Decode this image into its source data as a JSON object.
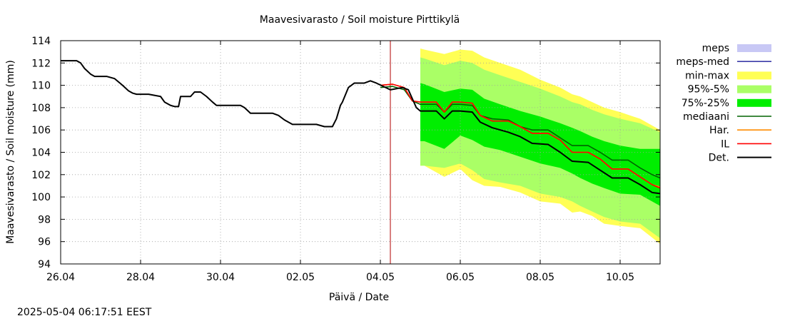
{
  "chart_data": {
    "type": "line",
    "title": "Maavesivarasto / Soil moisture   Pirttikylä",
    "xlabel": "Päivä / Date",
    "ylabel": "Maavesivarasto / Soil moisture (mm)",
    "ylim": [
      94,
      114
    ],
    "xlim_days": [
      0,
      15
    ],
    "yticks": [
      94,
      96,
      98,
      100,
      102,
      104,
      106,
      108,
      110,
      112,
      114
    ],
    "xtick_labels": [
      "26.04",
      "28.04",
      "30.04",
      "02.05",
      "04.05",
      "06.05",
      "08.05",
      "10.05"
    ],
    "xtick_days": [
      0,
      2,
      4,
      6,
      8,
      10,
      12,
      14
    ],
    "grid": true,
    "legend_position": "right",
    "forecast_start_day": 8.25,
    "forecast_band_start_day": 9.0,
    "series": [
      {
        "name": "meps",
        "kind": "band",
        "color": "#c8c8f5",
        "x": [],
        "low": [],
        "high": []
      },
      {
        "name": "meps-med",
        "kind": "line",
        "color": "#3a3aa8",
        "x": [],
        "y": []
      },
      {
        "name": "min-max",
        "kind": "band",
        "color": "#ffff55",
        "x": [
          9.0,
          9.1,
          9.6,
          10.0,
          10.3,
          10.6,
          11.0,
          11.5,
          12.0,
          12.5,
          12.8,
          13.0,
          13.3,
          13.6,
          14.0,
          14.5,
          15.0
        ],
        "high": [
          113.3,
          113.2,
          112.8,
          113.2,
          113.1,
          112.5,
          112.0,
          111.4,
          110.5,
          109.8,
          109.2,
          109.0,
          108.5,
          108.0,
          107.6,
          107.0,
          106.0
        ],
        "low": [
          102.8,
          102.8,
          101.8,
          102.5,
          101.5,
          101.0,
          100.9,
          100.4,
          99.6,
          99.4,
          98.6,
          98.7,
          98.3,
          97.6,
          97.4,
          97.2,
          95.8
        ]
      },
      {
        "name": "95%-5%",
        "kind": "band",
        "color": "#aaff66",
        "x": [
          9.0,
          9.1,
          9.6,
          10.0,
          10.3,
          10.6,
          11.0,
          11.5,
          12.0,
          12.5,
          12.8,
          13.0,
          13.3,
          13.6,
          14.0,
          14.5,
          15.0
        ],
        "high": [
          112.5,
          112.4,
          111.8,
          112.2,
          112.0,
          111.4,
          110.9,
          110.3,
          109.7,
          109.0,
          108.5,
          108.3,
          107.8,
          107.4,
          107.0,
          106.6,
          105.8
        ],
        "low": [
          102.8,
          102.8,
          102.6,
          103.0,
          102.4,
          101.6,
          101.3,
          101.0,
          100.3,
          100.0,
          99.6,
          99.2,
          98.7,
          98.2,
          97.8,
          97.6,
          96.3
        ]
      },
      {
        "name": "75%-25%",
        "kind": "band",
        "color": "#00ee00",
        "x": [
          9.0,
          9.1,
          9.6,
          10.0,
          10.3,
          10.6,
          11.0,
          11.5,
          12.0,
          12.5,
          12.8,
          13.0,
          13.3,
          13.6,
          14.0,
          14.5,
          15.0
        ],
        "high": [
          110.2,
          110.1,
          109.4,
          109.7,
          109.6,
          108.8,
          108.3,
          107.7,
          107.2,
          106.6,
          106.2,
          105.9,
          105.4,
          105.0,
          104.6,
          104.3,
          104.3
        ],
        "low": [
          105.0,
          105.0,
          104.3,
          105.5,
          105.1,
          104.5,
          104.2,
          103.6,
          103.0,
          102.6,
          102.1,
          101.7,
          101.2,
          100.8,
          100.3,
          100.2,
          99.2
        ]
      },
      {
        "name": "mediaani",
        "kind": "line",
        "color": "#006400",
        "x": [
          8.0,
          8.3,
          8.6,
          8.8,
          9.0,
          9.4,
          9.6,
          9.8,
          10.0,
          10.3,
          10.5,
          10.8,
          11.2,
          11.5,
          11.8,
          12.2,
          12.5,
          12.8,
          13.2,
          13.5,
          13.8,
          14.2,
          14.5,
          14.8,
          15.0
        ],
        "y": [
          109.8,
          109.9,
          109.6,
          108.6,
          108.3,
          108.3,
          107.6,
          108.3,
          108.3,
          108.2,
          107.3,
          107.0,
          106.9,
          106.3,
          106.0,
          106.0,
          105.3,
          104.6,
          104.6,
          104.0,
          103.3,
          103.3,
          102.6,
          102.0,
          101.7
        ]
      },
      {
        "name": "Har.",
        "kind": "line",
        "color": "#ff8c00",
        "x": [
          8.0,
          8.3,
          8.6,
          8.8,
          9.0,
          9.4,
          9.6,
          9.8,
          10.0,
          10.3,
          10.5,
          10.8,
          11.2,
          11.5,
          11.8,
          12.2,
          12.5,
          12.8,
          13.2,
          13.5,
          13.8,
          14.2,
          14.5,
          14.8,
          15.0
        ],
        "y": [
          110.0,
          110.1,
          109.8,
          108.6,
          108.5,
          108.5,
          107.6,
          108.5,
          108.5,
          108.4,
          107.3,
          106.8,
          106.8,
          106.3,
          105.7,
          105.7,
          105.1,
          104.0,
          104.0,
          103.4,
          102.5,
          102.5,
          101.8,
          101.1,
          100.9
        ]
      },
      {
        "name": "IL",
        "kind": "line",
        "color": "#ff0000",
        "x": [
          8.0,
          8.3,
          8.6,
          8.8,
          9.0,
          9.4,
          9.6,
          9.8,
          10.0,
          10.3,
          10.5,
          10.8,
          11.2,
          11.5,
          11.8,
          12.2,
          12.5,
          12.8,
          13.2,
          13.5,
          13.8,
          14.2,
          14.5,
          14.8,
          15.0
        ],
        "y": [
          110.0,
          110.1,
          109.8,
          108.6,
          108.5,
          108.5,
          107.6,
          108.5,
          108.5,
          108.4,
          107.3,
          106.8,
          106.8,
          106.3,
          105.7,
          105.7,
          105.1,
          104.0,
          104.0,
          103.4,
          102.5,
          102.5,
          101.8,
          101.1,
          100.8
        ]
      },
      {
        "name": "Det.",
        "kind": "line",
        "color": "#000000",
        "x": [
          0.0,
          0.4,
          0.5,
          0.6,
          0.75,
          0.85,
          1.0,
          1.15,
          1.35,
          1.55,
          1.7,
          1.8,
          1.9,
          2.0,
          2.2,
          2.5,
          2.6,
          2.75,
          2.85,
          2.95,
          3.0,
          3.25,
          3.35,
          3.5,
          3.65,
          3.8,
          3.9,
          4.0,
          4.2,
          4.5,
          4.6,
          4.75,
          5.0,
          5.3,
          5.45,
          5.6,
          5.8,
          6.0,
          6.25,
          6.4,
          6.6,
          6.7,
          6.8,
          6.9,
          7.0,
          7.05,
          7.2,
          7.35,
          7.5,
          7.6,
          7.75,
          7.9,
          8.25,
          8.55,
          8.7,
          8.8,
          8.9,
          9.0,
          9.4,
          9.6,
          9.8,
          10.0,
          10.3,
          10.5,
          10.8,
          11.2,
          11.5,
          11.8,
          12.2,
          12.5,
          12.8,
          13.2,
          13.5,
          13.8,
          14.2,
          14.5,
          14.8,
          15.0
        ],
        "y": [
          112.2,
          112.2,
          112.0,
          111.5,
          111.0,
          110.8,
          110.8,
          110.8,
          110.6,
          110.0,
          109.5,
          109.3,
          109.2,
          109.2,
          109.2,
          109.0,
          108.5,
          108.2,
          108.1,
          108.1,
          109.0,
          109.0,
          109.4,
          109.4,
          109.0,
          108.5,
          108.2,
          108.2,
          108.2,
          108.2,
          108.0,
          107.5,
          107.5,
          107.5,
          107.3,
          106.9,
          106.5,
          106.5,
          106.5,
          106.5,
          106.3,
          106.3,
          106.3,
          107.0,
          108.2,
          108.5,
          109.8,
          110.2,
          110.2,
          110.2,
          110.4,
          110.2,
          109.6,
          109.8,
          109.6,
          108.8,
          108.0,
          107.7,
          107.7,
          107.0,
          107.7,
          107.7,
          107.6,
          106.7,
          106.2,
          105.8,
          105.4,
          104.8,
          104.7,
          104.0,
          103.2,
          103.1,
          102.4,
          101.7,
          101.7,
          101.1,
          100.4,
          100.3
        ]
      }
    ]
  },
  "timestamp": "2025-05-04 06:17:51 EEST"
}
